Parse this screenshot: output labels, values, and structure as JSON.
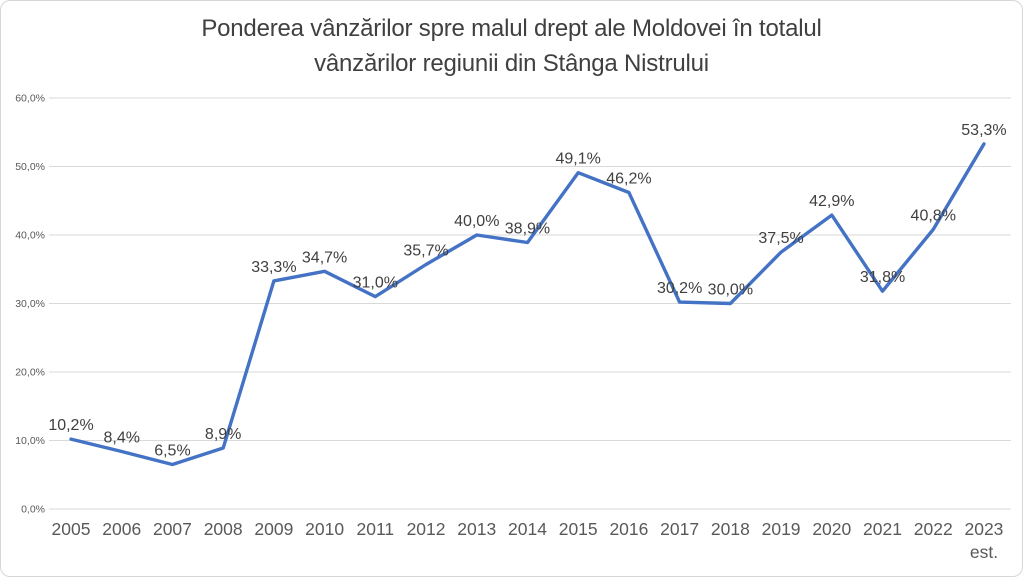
{
  "chart_data": {
    "type": "line",
    "title": "Ponderea vânzărilor spre malul drept ale Moldovei în totalul vânzărilor regiunii din Stânga Nistrului",
    "title_lines": [
      "Ponderea vânzărilor spre malul drept ale Moldovei în totalul",
      "vânzărilor regiunii din Stânga Nistrului"
    ],
    "categories": [
      "2005",
      "2006",
      "2007",
      "2008",
      "2009",
      "2010",
      "2011",
      "2012",
      "2013",
      "2014",
      "2015",
      "2016",
      "2017",
      "2018",
      "2019",
      "2020",
      "2021",
      "2022",
      "2023"
    ],
    "last_category_note": "est.",
    "values": [
      10.2,
      8.4,
      6.5,
      8.9,
      33.3,
      34.7,
      31.0,
      35.7,
      40.0,
      38.9,
      49.1,
      46.2,
      30.2,
      30.0,
      37.5,
      42.9,
      31.8,
      40.8,
      53.3
    ],
    "point_labels": [
      "10,2%",
      "8,4%",
      "6,5%",
      "8,9%",
      "33,3%",
      "34,7%",
      "31,0%",
      "35,7%",
      "40,0%",
      "38,9%",
      "49,1%",
      "46,2%",
      "30,2%",
      "30,0%",
      "37,5%",
      "42,9%",
      "31,8%",
      "40,8%",
      "53,3%"
    ],
    "ytick_labels": [
      "0,0%",
      "10,0%",
      "20,0%",
      "30,0%",
      "40,0%",
      "50,0%",
      "60,0%"
    ],
    "ylim": [
      0,
      60
    ],
    "ytick_step": 10,
    "xlabel": "",
    "ylabel": "",
    "grid": true,
    "legend": false,
    "colors": {
      "line": "#4472C4",
      "gridline": "#D9D9D9",
      "data_label": "#404040",
      "axis_label": "#595959",
      "title": "#404040",
      "border": "#D7D7D7",
      "background": "#FFFFFF"
    }
  }
}
